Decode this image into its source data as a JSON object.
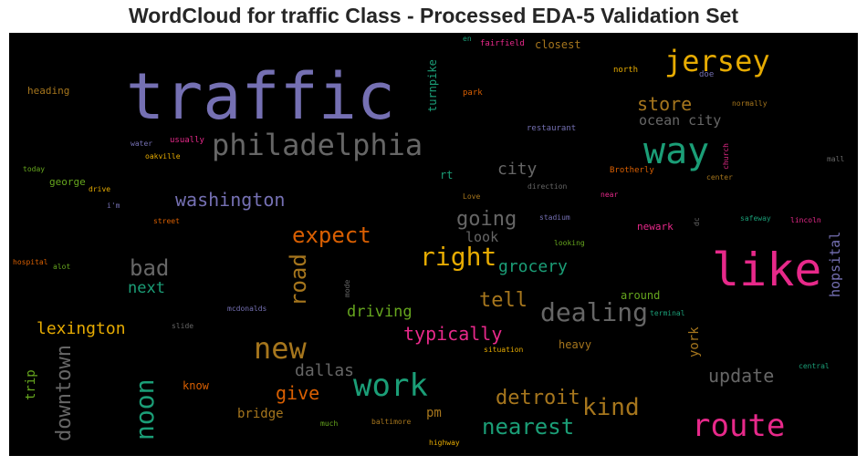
{
  "title": "WordCloud for traffic Class - Processed EDA-5 Validation Set",
  "words": [
    {
      "text": "traffic",
      "color": "#7570b3"
    },
    {
      "text": "like",
      "color": "#e7298a"
    },
    {
      "text": "way",
      "color": "#1b9e77"
    },
    {
      "text": "jersey",
      "color": "#e6ab02"
    },
    {
      "text": "philadelphia",
      "color": "#666666"
    },
    {
      "text": "route",
      "color": "#e7298a"
    },
    {
      "text": "work",
      "color": "#1b9e77"
    },
    {
      "text": "new",
      "color": "#a6761d"
    },
    {
      "text": "dealing",
      "color": "#666666"
    },
    {
      "text": "right",
      "color": "#e6ab02"
    },
    {
      "text": "noon",
      "color": "#1b9e77"
    },
    {
      "text": "road",
      "color": "#a6761d"
    },
    {
      "text": "downtown",
      "color": "#666666"
    },
    {
      "text": "kind",
      "color": "#a6761d"
    },
    {
      "text": "nearest",
      "color": "#1b9e77"
    },
    {
      "text": "detroit",
      "color": "#a6761d"
    },
    {
      "text": "expect",
      "color": "#d95f02"
    },
    {
      "text": "bad",
      "color": "#666666"
    },
    {
      "text": "typically",
      "color": "#e7298a"
    },
    {
      "text": "washington",
      "color": "#7570b3"
    },
    {
      "text": "going",
      "color": "#666666"
    },
    {
      "text": "tell",
      "color": "#a6761d"
    },
    {
      "text": "update",
      "color": "#666666"
    },
    {
      "text": "store",
      "color": "#a6761d"
    },
    {
      "text": "grocery",
      "color": "#1b9e77"
    },
    {
      "text": "give",
      "color": "#d95f02"
    },
    {
      "text": "city",
      "color": "#666666"
    },
    {
      "text": "lexington",
      "color": "#e6ab02"
    },
    {
      "text": "dallas",
      "color": "#666666"
    },
    {
      "text": "driving",
      "color": "#66a61e"
    },
    {
      "text": "next",
      "color": "#1b9e77"
    },
    {
      "text": "ocean city",
      "color": "#666666"
    },
    {
      "text": "look",
      "color": "#666666"
    },
    {
      "text": "hopsital",
      "color": "#7570b3"
    },
    {
      "text": "york",
      "color": "#a6761d"
    },
    {
      "text": "trip",
      "color": "#66a61e"
    },
    {
      "text": "bridge",
      "color": "#a6761d"
    },
    {
      "text": "pm",
      "color": "#a6761d"
    },
    {
      "text": "heavy",
      "color": "#a6761d"
    },
    {
      "text": "turnpike",
      "color": "#1b9e77"
    },
    {
      "text": "know",
      "color": "#d95f02"
    },
    {
      "text": "around",
      "color": "#66a61e"
    },
    {
      "text": "closest",
      "color": "#a6761d"
    },
    {
      "text": "heading",
      "color": "#a6761d"
    },
    {
      "text": "rt",
      "color": "#1b9e77"
    },
    {
      "text": "newark",
      "color": "#e7298a"
    },
    {
      "text": "george",
      "color": "#66a61e"
    },
    {
      "text": "north",
      "color": "#e6ab02"
    },
    {
      "text": "fairfield",
      "color": "#e7298a"
    },
    {
      "text": "en",
      "color": "#1b9e77"
    },
    {
      "text": "park",
      "color": "#d95f02"
    },
    {
      "text": "doe",
      "color": "#7570b3"
    },
    {
      "text": "normally",
      "color": "#a6761d"
    },
    {
      "text": "restaurant",
      "color": "#7570b3"
    },
    {
      "text": "water",
      "color": "#7570b3"
    },
    {
      "text": "usually",
      "color": "#e7298a"
    },
    {
      "text": "oakville",
      "color": "#e6ab02"
    },
    {
      "text": "church",
      "color": "#e7298a"
    },
    {
      "text": "mall",
      "color": "#666666"
    },
    {
      "text": "today",
      "color": "#66a61e"
    },
    {
      "text": "drive",
      "color": "#e6ab02"
    },
    {
      "text": "Brotherly",
      "color": "#d95f02"
    },
    {
      "text": "center",
      "color": "#a6761d"
    },
    {
      "text": "direction",
      "color": "#666666"
    },
    {
      "text": "Love",
      "color": "#a6761d"
    },
    {
      "text": "near",
      "color": "#e7298a"
    },
    {
      "text": "i'm",
      "color": "#7570b3"
    },
    {
      "text": "street",
      "color": "#d95f02"
    },
    {
      "text": "stadium",
      "color": "#7570b3"
    },
    {
      "text": "dc",
      "color": "#666666"
    },
    {
      "text": "safeway",
      "color": "#1b9e77"
    },
    {
      "text": "lincoln",
      "color": "#e7298a"
    },
    {
      "text": "looking",
      "color": "#66a61e"
    },
    {
      "text": "hospital",
      "color": "#d95f02"
    },
    {
      "text": "alot",
      "color": "#66a61e"
    },
    {
      "text": "mode",
      "color": "#666666"
    },
    {
      "text": "mcdonalds",
      "color": "#7570b3"
    },
    {
      "text": "terminal",
      "color": "#1b9e77"
    },
    {
      "text": "slide",
      "color": "#666666"
    },
    {
      "text": "situation",
      "color": "#e6ab02"
    },
    {
      "text": "central",
      "color": "#1b9e77"
    },
    {
      "text": "much",
      "color": "#66a61e"
    },
    {
      "text": "baltimore",
      "color": "#a6761d"
    },
    {
      "text": "highway",
      "color": "#e6ab02"
    }
  ]
}
